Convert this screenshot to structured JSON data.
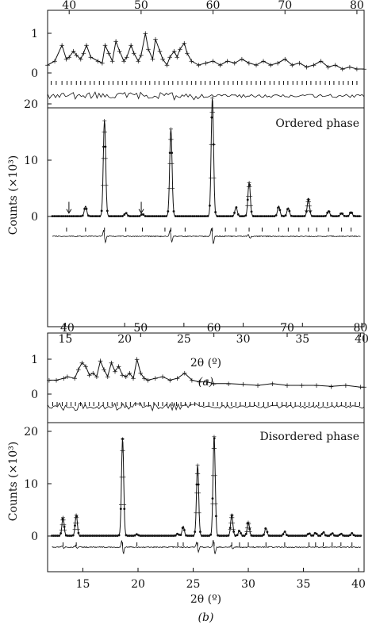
{
  "chart_data": [
    {
      "panel": "(a)",
      "type": "line",
      "top_axis": {
        "ticks": [
          40,
          50,
          60,
          70,
          80
        ],
        "range": [
          37,
          81
        ]
      },
      "upper_plot": {
        "yticks": [
          "1",
          "0"
        ],
        "ylim": [
          -0.2,
          1.45
        ],
        "observed": [
          [
            37,
            0.2
          ],
          [
            38,
            0.3
          ],
          [
            39,
            0.7
          ],
          [
            39.6,
            0.35
          ],
          [
            40,
            0.4
          ],
          [
            40.6,
            0.55
          ],
          [
            41,
            0.45
          ],
          [
            41.6,
            0.35
          ],
          [
            42,
            0.5
          ],
          [
            42.4,
            0.7
          ],
          [
            43,
            0.4
          ],
          [
            44,
            0.3
          ],
          [
            44.6,
            0.25
          ],
          [
            45,
            0.7
          ],
          [
            45.5,
            0.5
          ],
          [
            46,
            0.3
          ],
          [
            46.5,
            0.8
          ],
          [
            47,
            0.55
          ],
          [
            47.6,
            0.3
          ],
          [
            48,
            0.4
          ],
          [
            48.6,
            0.7
          ],
          [
            49,
            0.5
          ],
          [
            49.6,
            0.3
          ],
          [
            50,
            0.45
          ],
          [
            50.6,
            1.0
          ],
          [
            51,
            0.6
          ],
          [
            51.6,
            0.35
          ],
          [
            52,
            0.85
          ],
          [
            52.6,
            0.55
          ],
          [
            53,
            0.35
          ],
          [
            53.6,
            0.2
          ],
          [
            54,
            0.4
          ],
          [
            54.6,
            0.55
          ],
          [
            55,
            0.4
          ],
          [
            55.4,
            0.6
          ],
          [
            56,
            0.75
          ],
          [
            56.4,
            0.5
          ],
          [
            57,
            0.3
          ],
          [
            58,
            0.2
          ],
          [
            59,
            0.25
          ],
          [
            60,
            0.3
          ],
          [
            61,
            0.2
          ],
          [
            62,
            0.3
          ],
          [
            63,
            0.25
          ],
          [
            64,
            0.35
          ],
          [
            65,
            0.25
          ],
          [
            66,
            0.2
          ],
          [
            67,
            0.3
          ],
          [
            68,
            0.2
          ],
          [
            69,
            0.25
          ],
          [
            70,
            0.35
          ],
          [
            71,
            0.2
          ],
          [
            72,
            0.25
          ],
          [
            73,
            0.15
          ],
          [
            74,
            0.2
          ],
          [
            75,
            0.3
          ],
          [
            76,
            0.15
          ],
          [
            77,
            0.2
          ],
          [
            78,
            0.1
          ],
          [
            79,
            0.15
          ],
          [
            80,
            0.1
          ],
          [
            81,
            0.1
          ]
        ],
        "reflection_ticks_2theta": [
          37.5,
          38.2,
          39.0,
          39.7,
          40.3,
          41.0,
          41.6,
          42.2,
          42.9,
          43.5,
          44.2,
          44.8,
          45.5,
          46.1,
          46.8,
          47.4,
          48.0,
          48.7,
          49.3,
          50.0,
          50.6,
          51.2,
          51.9,
          52.5,
          53.2,
          53.8,
          54.4,
          55.1,
          55.7,
          56.4,
          57.0,
          57.6,
          58.3,
          58.9,
          59.6,
          60.2,
          60.8,
          61.5,
          62.1,
          62.8,
          63.4,
          64.0,
          64.7,
          65.3,
          66.0,
          66.6,
          67.2,
          67.9,
          68.5,
          69.2,
          69.8,
          70.4,
          71.1,
          71.7,
          72.4,
          73.0,
          73.6,
          74.3,
          74.9,
          75.6,
          76.2,
          76.8,
          77.5,
          78.1,
          78.8,
          79.4,
          80.0
        ]
      },
      "lower_plot": {
        "x_ticks": [
          15,
          20,
          25,
          30,
          35,
          40
        ],
        "x_range": [
          13.5,
          40.2
        ],
        "xlabel": "2θ (º)",
        "ylabel": "Counts (×10³)",
        "y_ticks": [
          0,
          10,
          20
        ],
        "ylim": [
          -5,
          24
        ],
        "annotation": "Ordered phase",
        "arrows_2theta": [
          15.3,
          21.4
        ],
        "peaks": [
          [
            16.7,
            1.8
          ],
          [
            18.3,
            17
          ],
          [
            20.1,
            0.6
          ],
          [
            21.5,
            0.4
          ],
          [
            23.9,
            15.5
          ],
          [
            27.4,
            21
          ],
          [
            29.4,
            1.6
          ],
          [
            30.5,
            6.0
          ],
          [
            33.0,
            1.8
          ],
          [
            33.8,
            1.5
          ],
          [
            35.5,
            3.0
          ],
          [
            37.2,
            1.0
          ],
          [
            38.3,
            0.6
          ],
          [
            39.1,
            0.8
          ]
        ],
        "reflection_ticks_2theta": [
          15.1,
          16.7,
          18.3,
          20.1,
          21.5,
          23.4,
          23.9,
          25.1,
          27.4,
          28.5,
          29.4,
          30.5,
          31.6,
          33.0,
          33.8,
          34.7,
          35.5,
          36.2,
          37.2,
          38.3,
          39.1
        ]
      },
      "caption": "(a)"
    },
    {
      "panel": "(b)",
      "type": "line",
      "top_axis": {
        "ticks": [
          40,
          50,
          60,
          70,
          80
        ],
        "range": [
          37.3,
          80.5
        ]
      },
      "upper_plot": {
        "yticks": [
          "1",
          "0"
        ],
        "ylim": [
          -0.2,
          1.45
        ],
        "observed": [
          [
            37.5,
            0.4
          ],
          [
            38.5,
            0.4
          ],
          [
            39.5,
            0.45
          ],
          [
            40,
            0.5
          ],
          [
            41,
            0.45
          ],
          [
            41.5,
            0.7
          ],
          [
            42,
            0.9
          ],
          [
            42.5,
            0.8
          ],
          [
            43,
            0.55
          ],
          [
            43.5,
            0.6
          ],
          [
            44,
            0.5
          ],
          [
            44.5,
            0.95
          ],
          [
            45,
            0.7
          ],
          [
            45.5,
            0.5
          ],
          [
            46,
            0.9
          ],
          [
            46.5,
            0.65
          ],
          [
            47,
            0.8
          ],
          [
            47.5,
            0.55
          ],
          [
            48,
            0.5
          ],
          [
            48.5,
            0.6
          ],
          [
            49,
            0.45
          ],
          [
            49.5,
            1.0
          ],
          [
            50,
            0.6
          ],
          [
            50.5,
            0.45
          ],
          [
            51,
            0.4
          ],
          [
            52,
            0.45
          ],
          [
            53,
            0.5
          ],
          [
            54,
            0.4
          ],
          [
            55,
            0.45
          ],
          [
            56,
            0.6
          ],
          [
            57,
            0.4
          ],
          [
            58,
            0.35
          ],
          [
            59,
            0.35
          ],
          [
            60,
            0.3
          ],
          [
            62,
            0.3
          ],
          [
            64,
            0.28
          ],
          [
            66,
            0.25
          ],
          [
            68,
            0.3
          ],
          [
            70,
            0.25
          ],
          [
            72,
            0.25
          ],
          [
            74,
            0.25
          ],
          [
            76,
            0.22
          ],
          [
            78,
            0.25
          ],
          [
            80,
            0.2
          ],
          [
            80.5,
            0.2
          ]
        ],
        "reflection_ticks_2theta": [
          38.0,
          38.6,
          39.3,
          39.9,
          40.5,
          41.1,
          41.8,
          42.4,
          43.0,
          43.6,
          44.3,
          44.9,
          45.5,
          46.1,
          46.8,
          47.4,
          48.0,
          48.6,
          49.3,
          49.9,
          50.5,
          51.1,
          51.8,
          52.4,
          53.0,
          53.6,
          54.3,
          54.9,
          55.5,
          56.1,
          56.8,
          57.4,
          58.0,
          58.6,
          59.3,
          59.9,
          60.5,
          61.1,
          61.8,
          62.4,
          63.0,
          63.6,
          64.3,
          64.9,
          65.5,
          66.1,
          66.8,
          67.4,
          68.0,
          68.6,
          69.3,
          69.9,
          70.5,
          71.1,
          71.8,
          72.4,
          73.0,
          73.6,
          74.3,
          74.9,
          75.5,
          76.1,
          76.8,
          77.4,
          78.0,
          78.6,
          79.3,
          79.9
        ]
      },
      "lower_plot": {
        "x_ticks": [
          15,
          20,
          25,
          30,
          35,
          40
        ],
        "x_range": [
          11.8,
          40.5
        ],
        "xlabel": "2θ (º)",
        "ylabel": "Counts (×10³)",
        "y_ticks": [
          0,
          10,
          20
        ],
        "ylim": [
          -4.5,
          21.5
        ],
        "annotation": "Disordered phase",
        "peaks": [
          [
            13.2,
            3.5
          ],
          [
            14.4,
            4.0
          ],
          [
            18.6,
            18.5
          ],
          [
            19.9,
            0.3
          ],
          [
            23.6,
            0.4
          ],
          [
            24.1,
            1.8
          ],
          [
            25.4,
            13.5
          ],
          [
            26.9,
            19
          ],
          [
            28.5,
            4.0
          ],
          [
            29.2,
            1.0
          ],
          [
            30.0,
            2.6
          ],
          [
            31.6,
            1.5
          ],
          [
            33.3,
            0.8
          ],
          [
            35.5,
            0.5
          ],
          [
            36.1,
            0.6
          ],
          [
            36.8,
            0.7
          ],
          [
            37.6,
            0.5
          ],
          [
            38.4,
            0.4
          ],
          [
            39.4,
            0.5
          ]
        ],
        "reflection_ticks_2theta": [
          13.2,
          14.4,
          18.6,
          19.9,
          23.6,
          24.1,
          25.4,
          26.9,
          28.5,
          29.2,
          30.0,
          31.6,
          33.3,
          35.5,
          36.1,
          36.8,
          37.6,
          38.4,
          39.4
        ]
      },
      "caption": "(b)"
    }
  ]
}
